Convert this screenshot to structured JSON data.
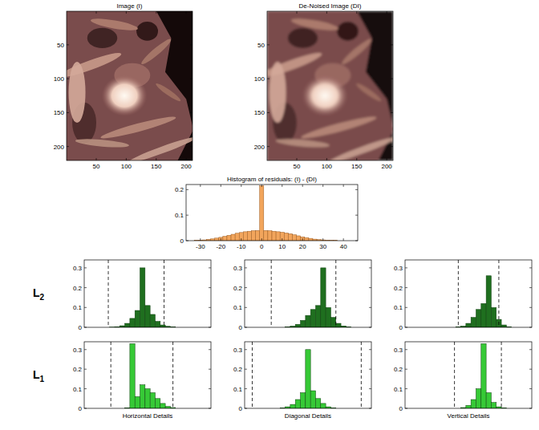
{
  "chart_data": [
    {
      "type": "image",
      "title": "Image (I)",
      "xlim": [
        0.5,
        210.5
      ],
      "ylim": [
        0.5,
        220.5
      ],
      "xticks": [
        50,
        100,
        150,
        200
      ],
      "yticks": [
        50,
        100,
        150,
        200
      ]
    },
    {
      "type": "image",
      "title": "De-Noised Image (DI)",
      "xlim": [
        0.5,
        210.5
      ],
      "ylim": [
        0.5,
        220.5
      ],
      "xticks": [
        50,
        100,
        150,
        200
      ],
      "yticks": [
        50,
        100,
        150,
        200
      ]
    },
    {
      "type": "histogram",
      "title": "Histogram of residuals: (I) - (DI)",
      "color": "#f2a55c",
      "bins": [
        -37,
        -35,
        -33,
        -31,
        -29,
        -27,
        -25,
        -23,
        -21,
        -19,
        -17,
        -15,
        -13,
        -11,
        -9,
        -7,
        -5,
        -3,
        -1,
        1,
        3,
        5,
        7,
        9,
        11,
        13,
        15,
        17,
        19,
        21,
        23,
        25,
        27,
        29,
        31,
        33,
        35,
        37,
        39,
        41,
        43,
        45
      ],
      "values": [
        0,
        0,
        0.001,
        0.002,
        0.003,
        0.005,
        0.007,
        0.01,
        0.013,
        0.017,
        0.021,
        0.025,
        0.029,
        0.032,
        0.035,
        0.037,
        0.039,
        0.04,
        0.215,
        0.04,
        0.039,
        0.037,
        0.035,
        0.033,
        0.03,
        0.027,
        0.023,
        0.019,
        0.015,
        0.012,
        0.009,
        0.006,
        0.004,
        0.003,
        0.002,
        0.001,
        0.001,
        0,
        0,
        0,
        0
      ],
      "xlim": [
        -37,
        47
      ],
      "ylim": [
        0,
        0.22
      ],
      "xticks": [
        -30,
        -20,
        -10,
        0,
        10,
        20,
        30,
        40
      ],
      "yticks": [
        0,
        0.1,
        0.2
      ]
    },
    {
      "type": "histogram",
      "ylabel": "L2",
      "color": "#1f6f1f",
      "tick_labels": "y",
      "bins": [
        -50,
        -46,
        -42,
        -38,
        -34,
        -30,
        -26,
        -22,
        -18,
        -14,
        -10,
        -6,
        -2,
        2,
        6,
        10,
        14,
        18,
        22,
        26,
        30,
        34,
        38,
        42,
        46,
        50
      ],
      "values": [
        0,
        0,
        0,
        0,
        0,
        0.001,
        0.003,
        0.008,
        0.02,
        0.045,
        0.085,
        0.3,
        0.11,
        0.065,
        0.03,
        0.012,
        0.005,
        0.002,
        0,
        0,
        0,
        0,
        0,
        0,
        0
      ],
      "thresholds": [
        -31,
        13
      ],
      "xlim": [
        -50,
        50
      ],
      "ylim": [
        0,
        0.34
      ],
      "yticks": [
        0,
        0.1,
        0.2,
        0.3
      ]
    },
    {
      "type": "histogram",
      "color": "#1f6f1f",
      "tick_labels": "y",
      "bins": [
        -50,
        -46,
        -42,
        -38,
        -34,
        -30,
        -26,
        -22,
        -18,
        -14,
        -10,
        -6,
        -2,
        2,
        6,
        10,
        14,
        18,
        22,
        26,
        30,
        34,
        38,
        42,
        46,
        50
      ],
      "values": [
        0,
        0,
        0,
        0,
        0,
        0,
        0,
        0,
        0.002,
        0.006,
        0.015,
        0.035,
        0.06,
        0.09,
        0.11,
        0.3,
        0.1,
        0.05,
        0.02,
        0.007,
        0.002,
        0,
        0,
        0,
        0
      ],
      "thresholds": [
        -29,
        22
      ],
      "xlim": [
        -50,
        50
      ],
      "ylim": [
        0,
        0.34
      ],
      "yticks": [
        0,
        0.1,
        0.2,
        0.3
      ]
    },
    {
      "type": "histogram",
      "color": "#1f6f1f",
      "tick_labels": "y",
      "bins": [
        -50,
        -46,
        -42,
        -38,
        -34,
        -30,
        -26,
        -22,
        -18,
        -14,
        -10,
        -6,
        -2,
        2,
        6,
        10,
        14,
        18,
        22,
        26,
        30,
        34,
        38,
        42,
        46,
        50
      ],
      "values": [
        0,
        0,
        0,
        0,
        0,
        0,
        0,
        0,
        0,
        0,
        0.002,
        0.006,
        0.02,
        0.05,
        0.09,
        0.12,
        0.26,
        0.1,
        0.04,
        0.012,
        0.003,
        0,
        0,
        0,
        0
      ],
      "thresholds": [
        -8,
        24
      ],
      "xlim": [
        -50,
        50
      ],
      "ylim": [
        0,
        0.34
      ],
      "yticks": [
        0,
        0.1,
        0.2,
        0.3
      ]
    },
    {
      "type": "histogram",
      "ylabel": "L1",
      "xlabel": "Horizontal Details",
      "color": "#36c936",
      "tick_labels": "y",
      "bins": [
        -50,
        -46,
        -42,
        -38,
        -34,
        -30,
        -26,
        -22,
        -18,
        -14,
        -10,
        -6,
        -2,
        2,
        6,
        10,
        14,
        18,
        22,
        26,
        30,
        34,
        38,
        42,
        46,
        50
      ],
      "values": [
        0,
        0,
        0,
        0,
        0,
        0,
        0,
        0,
        0.003,
        0.33,
        0.06,
        0.12,
        0.1,
        0.08,
        0.05,
        0.025,
        0.01,
        0.004,
        0,
        0,
        0,
        0,
        0,
        0,
        0
      ],
      "thresholds": [
        -29,
        20
      ],
      "xlim": [
        -50,
        50
      ],
      "ylim": [
        0,
        0.34
      ],
      "yticks": [
        0,
        0.1,
        0.2,
        0.3
      ]
    },
    {
      "type": "histogram",
      "xlabel": "Diagonal Details",
      "color": "#36c936",
      "tick_labels": "y",
      "bins": [
        -50,
        -46,
        -42,
        -38,
        -34,
        -30,
        -26,
        -22,
        -18,
        -14,
        -10,
        -6,
        -2,
        2,
        6,
        10,
        14,
        18,
        22,
        26,
        30,
        34,
        38,
        42,
        46,
        50
      ],
      "values": [
        0,
        0,
        0,
        0,
        0,
        0,
        0,
        0.002,
        0.008,
        0.02,
        0.045,
        0.08,
        0.3,
        0.09,
        0.05,
        0.025,
        0.008,
        0.002,
        0,
        0,
        0,
        0,
        0,
        0,
        0
      ],
      "thresholds": [
        -44,
        42
      ],
      "xlim": [
        -50,
        50
      ],
      "ylim": [
        0,
        0.34
      ],
      "yticks": [
        0,
        0.1,
        0.2,
        0.3
      ]
    },
    {
      "type": "histogram",
      "xlabel": "Vertical Details",
      "color": "#36c936",
      "tick_labels": "y",
      "bins": [
        -50,
        -46,
        -42,
        -38,
        -34,
        -30,
        -26,
        -22,
        -18,
        -14,
        -10,
        -6,
        -2,
        2,
        6,
        10,
        14,
        18,
        22,
        26,
        30,
        34,
        38,
        42,
        46,
        50
      ],
      "values": [
        0,
        0,
        0,
        0,
        0,
        0,
        0,
        0,
        0,
        0,
        0,
        0.004,
        0.015,
        0.045,
        0.1,
        0.33,
        0.08,
        0.03,
        0.008,
        0.002,
        0,
        0,
        0,
        0,
        0
      ],
      "thresholds": [
        -11,
        26
      ],
      "xlim": [
        -50,
        50
      ],
      "ylim": [
        0,
        0.34
      ],
      "yticks": [
        0,
        0.1,
        0.2,
        0.3
      ]
    }
  ]
}
